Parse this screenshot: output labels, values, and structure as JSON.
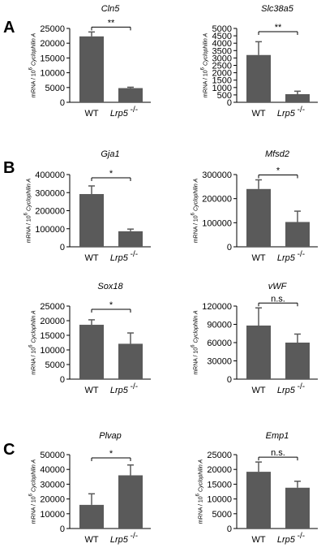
{
  "panels": [
    {
      "letter": "A",
      "row": 0
    },
    {
      "letter": "B",
      "row": 1
    },
    {
      "letter": "C",
      "row": 3
    }
  ],
  "ylabel": {
    "main": "mRNA / 10",
    "sup": "6",
    "species": "Cyclophilin A"
  },
  "categories": {
    "wt": "WT",
    "ko": {
      "name": "Lrp5",
      "sup": "-/-"
    }
  },
  "chart_data": [
    {
      "type": "bar",
      "title": "Cln5",
      "categories": [
        "WT",
        "Lrp5 -/-"
      ],
      "values": [
        22300,
        4800
      ],
      "errors": [
        1500,
        300
      ],
      "ylim": [
        0,
        25000
      ],
      "yticks": [
        0,
        5000,
        10000,
        15000,
        20000,
        25000
      ],
      "significance": "**",
      "bar_color": "#5a5a5a"
    },
    {
      "type": "bar",
      "title": "Slc38a5",
      "categories": [
        "WT",
        "Lrp5 -/-"
      ],
      "values": [
        3200,
        550
      ],
      "errors": [
        900,
        200
      ],
      "ylim": [
        0,
        5000
      ],
      "yticks": [
        0,
        500,
        1000,
        1500,
        2000,
        2500,
        3000,
        3500,
        4000,
        4500,
        5000
      ],
      "significance": "**",
      "bar_color": "#5a5a5a"
    },
    {
      "type": "bar",
      "title": "Gja1",
      "categories": [
        "WT",
        "Lrp5 -/-"
      ],
      "values": [
        292000,
        86000
      ],
      "errors": [
        45000,
        12000
      ],
      "ylim": [
        0,
        400000
      ],
      "yticks": [
        0,
        100000,
        200000,
        300000,
        400000
      ],
      "significance": "*",
      "bar_color": "#5a5a5a"
    },
    {
      "type": "bar",
      "title": "Mfsd2",
      "categories": [
        "WT",
        "Lrp5 -/-"
      ],
      "values": [
        240000,
        103000
      ],
      "errors": [
        38000,
        45000
      ],
      "ylim": [
        0,
        300000
      ],
      "yticks": [
        0,
        100000,
        200000,
        300000
      ],
      "significance": "*",
      "bar_color": "#5a5a5a"
    },
    {
      "type": "bar",
      "title": "Sox18",
      "categories": [
        "WT",
        "Lrp5 -/-"
      ],
      "values": [
        18600,
        12100
      ],
      "errors": [
        1700,
        3700
      ],
      "ylim": [
        0,
        25000
      ],
      "yticks": [
        0,
        5000,
        10000,
        15000,
        20000,
        25000
      ],
      "significance": "*",
      "bar_color": "#5a5a5a"
    },
    {
      "type": "bar",
      "title": "vWF",
      "categories": [
        "WT",
        "Lrp5 -/-"
      ],
      "values": [
        88000,
        60000
      ],
      "errors": [
        29000,
        14000
      ],
      "ylim": [
        0,
        120000
      ],
      "yticks": [
        0,
        30000,
        60000,
        90000,
        120000
      ],
      "significance": "n.s.",
      "bar_color": "#5a5a5a"
    },
    {
      "type": "bar",
      "title": "Plvap",
      "categories": [
        "WT",
        "Lrp5 -/-"
      ],
      "values": [
        16000,
        36000
      ],
      "errors": [
        7500,
        7000
      ],
      "ylim": [
        0,
        50000
      ],
      "yticks": [
        0,
        10000,
        20000,
        30000,
        40000,
        50000
      ],
      "significance": "*",
      "bar_color": "#5a5a5a"
    },
    {
      "type": "bar",
      "title": "Emp1",
      "categories": [
        "WT",
        "Lrp5 -/-"
      ],
      "values": [
        19200,
        13800
      ],
      "errors": [
        3300,
        2200
      ],
      "ylim": [
        0,
        25000
      ],
      "yticks": [
        0,
        5000,
        10000,
        15000,
        20000,
        25000
      ],
      "significance": "n.s.",
      "bar_color": "#5a5a5a"
    }
  ]
}
